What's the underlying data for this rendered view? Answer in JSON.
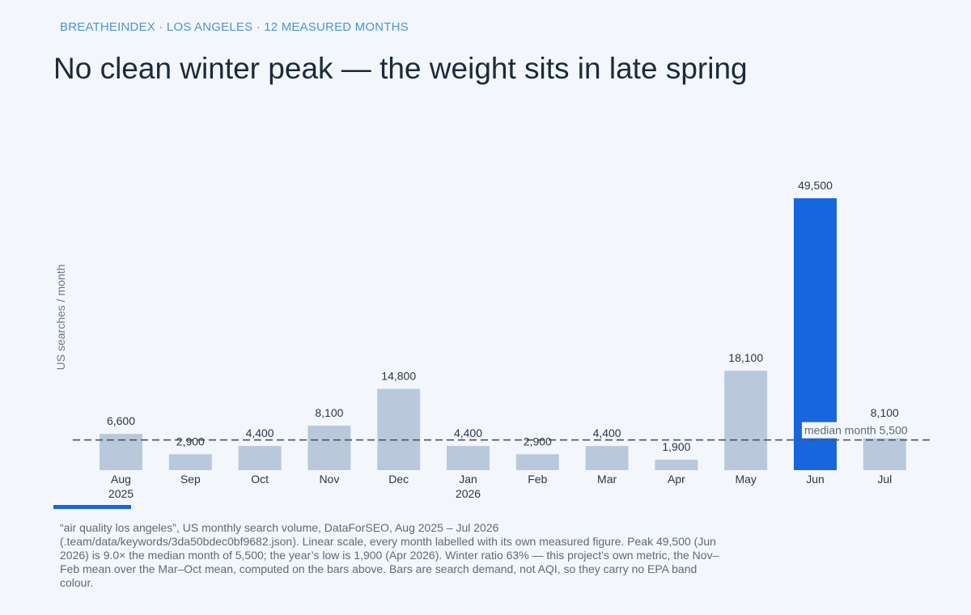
{
  "kicker": "BREATHEINDEX · LOS ANGELES · 12 MEASURED MONTHS",
  "headline": "No clean winter peak — the weight sits in late spring",
  "source_note": "“air quality los angeles”, US monthly search volume, DataForSEO, Aug 2025 – Jul 2026 (.team/data/keywords/3da50bdec0bf9682.json). Linear scale, every month labelled with its own measured figure. Peak 49,500 (Jun 2026) is 9.0× the median month of 5,500; the year’s low is 1,900 (Apr 2026). Winter ratio 63% — this project’s own metric, the Nov–Feb mean over the Mar–Oct mean, computed on the bars above. Bars are search demand, not AQI, so they carry no EPA band colour.",
  "colors": {
    "bar": "#b9c9db",
    "highlight": "#1766de",
    "accent": "#1766de",
    "median_line": "#4a5563"
  },
  "chart_data": {
    "type": "bar",
    "title": "No clean winter peak — the weight sits in late spring",
    "ylabel": "US searches / month",
    "categories": [
      "Aug",
      "Sep",
      "Oct",
      "Nov",
      "Dec",
      "Jan",
      "Feb",
      "Mar",
      "Apr",
      "May",
      "Jun",
      "Jul"
    ],
    "year_labels": [
      "2025",
      "",
      "",
      "",
      "",
      "2026",
      "",
      "",
      "",
      "",
      "",
      ""
    ],
    "values": [
      6600,
      2900,
      4400,
      8100,
      14800,
      4400,
      2900,
      4400,
      1900,
      18100,
      49500,
      8100
    ],
    "value_labels": [
      "6,600",
      "2,900",
      "4,400",
      "8,100",
      "14,800",
      "4,400",
      "2,900",
      "4,400",
      "1,900",
      "18,100",
      "49,500",
      "8,100"
    ],
    "highlight_category": "Jun",
    "ylim": [
      0,
      49500
    ],
    "grid": false,
    "legend": "none",
    "reference_line": {
      "label": "median month",
      "value": 5500,
      "value_label": "5,500"
    }
  }
}
